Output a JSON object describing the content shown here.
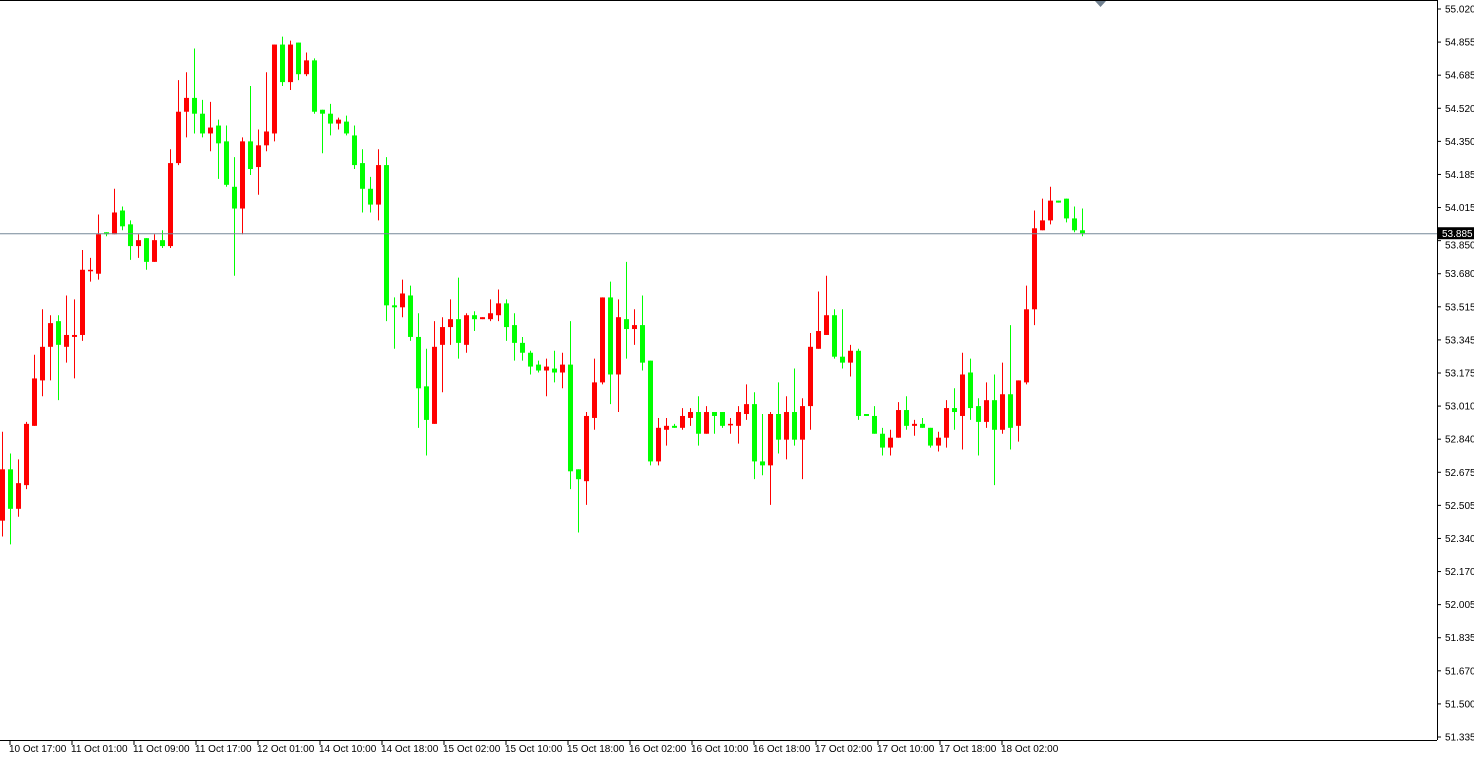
{
  "chart_data": {
    "type": "candlestick",
    "title": "",
    "xlabel": "",
    "ylabel": "",
    "ylim": [
      51.335,
      55.02
    ],
    "grid": false,
    "colors": {
      "up": "#ff0000",
      "down": "#00ff00",
      "price_line": "#778899",
      "axis": "#000000",
      "price_tag_bg": "#000000",
      "price_tag_text": "#ffffff"
    },
    "y_ticks": [
      "55.020",
      "54.855",
      "54.685",
      "54.520",
      "54.350",
      "54.185",
      "54.015",
      "53.850",
      "53.680",
      "53.515",
      "53.345",
      "53.175",
      "53.010",
      "52.840",
      "52.675",
      "52.505",
      "52.340",
      "52.170",
      "52.005",
      "51.835",
      "51.670",
      "51.500",
      "51.335"
    ],
    "x_ticks": [
      "10 Oct 17:00",
      "11 Oct 01:00",
      "11 Oct 09:00",
      "11 Oct 17:00",
      "12 Oct 01:00",
      "14 Oct 10:00",
      "14 Oct 18:00",
      "15 Oct 02:00",
      "15 Oct 10:00",
      "15 Oct 18:00",
      "16 Oct 02:00",
      "16 Oct 10:00",
      "16 Oct 18:00",
      "17 Oct 02:00",
      "17 Oct 10:00",
      "17 Oct 18:00",
      "18 Oct 02:00"
    ],
    "current_price": "53.885",
    "ohlc_fields": [
      "open",
      "high",
      "low",
      "close"
    ],
    "candles": [
      [
        52.43,
        52.88,
        52.35,
        52.69
      ],
      [
        52.69,
        52.77,
        52.31,
        52.49
      ],
      [
        52.49,
        52.74,
        52.45,
        52.62
      ],
      [
        52.61,
        52.93,
        52.59,
        52.92
      ],
      [
        52.91,
        53.27,
        52.91,
        53.15
      ],
      [
        53.14,
        53.5,
        53.06,
        53.31
      ],
      [
        53.31,
        53.47,
        53.14,
        53.43
      ],
      [
        53.44,
        53.47,
        53.04,
        53.32
      ],
      [
        53.31,
        53.57,
        53.23,
        53.37
      ],
      [
        53.36,
        53.55,
        53.15,
        53.37
      ],
      [
        53.37,
        53.8,
        53.34,
        53.7
      ],
      [
        53.7,
        53.76,
        53.64,
        53.7
      ],
      [
        53.68,
        53.98,
        53.65,
        53.88
      ],
      [
        53.89,
        53.89,
        53.87,
        53.88
      ],
      [
        53.88,
        54.11,
        53.88,
        53.99
      ],
      [
        54.0,
        54.02,
        53.9,
        53.92
      ],
      [
        53.93,
        53.95,
        53.75,
        53.82
      ],
      [
        53.82,
        53.88,
        53.76,
        53.85
      ],
      [
        53.86,
        53.86,
        53.7,
        53.74
      ],
      [
        53.74,
        53.88,
        53.74,
        53.85
      ],
      [
        53.85,
        53.9,
        53.81,
        53.82
      ],
      [
        53.82,
        54.31,
        53.81,
        54.24
      ],
      [
        54.24,
        54.66,
        54.23,
        54.5
      ],
      [
        54.5,
        54.7,
        54.37,
        54.57
      ],
      [
        54.57,
        54.82,
        54.39,
        54.49
      ],
      [
        54.49,
        54.56,
        54.37,
        54.39
      ],
      [
        54.39,
        54.55,
        54.3,
        54.42
      ],
      [
        54.43,
        54.46,
        54.16,
        54.34
      ],
      [
        54.35,
        54.43,
        54.12,
        54.13
      ],
      [
        54.12,
        54.27,
        53.67,
        54.01
      ],
      [
        54.01,
        54.37,
        53.88,
        54.35
      ],
      [
        54.35,
        54.63,
        54.18,
        54.21
      ],
      [
        54.22,
        54.41,
        54.08,
        54.33
      ],
      [
        54.33,
        54.7,
        54.3,
        54.4
      ],
      [
        54.39,
        54.84,
        54.35,
        54.84
      ],
      [
        54.84,
        54.88,
        54.63,
        54.65
      ],
      [
        54.65,
        54.86,
        54.61,
        54.84
      ],
      [
        54.85,
        54.85,
        54.66,
        54.69
      ],
      [
        54.69,
        54.8,
        54.68,
        54.76
      ],
      [
        54.76,
        54.77,
        54.49,
        54.5
      ],
      [
        54.51,
        54.51,
        54.29,
        54.49
      ],
      [
        54.49,
        54.54,
        54.38,
        54.44
      ],
      [
        54.44,
        54.47,
        54.41,
        54.46
      ],
      [
        54.45,
        54.48,
        54.38,
        54.39
      ],
      [
        54.38,
        54.43,
        54.21,
        54.23
      ],
      [
        54.24,
        54.31,
        53.99,
        54.11
      ],
      [
        54.11,
        54.17,
        53.99,
        54.03
      ],
      [
        54.03,
        54.31,
        53.95,
        54.23
      ],
      [
        54.23,
        54.27,
        53.44,
        53.52
      ],
      [
        53.52,
        53.56,
        53.3,
        53.51
      ],
      [
        53.51,
        53.65,
        53.46,
        53.58
      ],
      [
        53.57,
        53.62,
        53.34,
        53.36
      ],
      [
        53.36,
        53.48,
        52.9,
        53.1
      ],
      [
        53.11,
        53.3,
        52.76,
        52.94
      ],
      [
        52.92,
        53.44,
        52.92,
        53.31
      ],
      [
        53.32,
        53.46,
        53.08,
        53.41
      ],
      [
        53.41,
        53.55,
        53.32,
        53.45
      ],
      [
        53.45,
        53.66,
        53.25,
        53.33
      ],
      [
        53.32,
        53.48,
        53.28,
        53.47
      ],
      [
        53.47,
        53.49,
        53.39,
        53.45
      ],
      [
        53.45,
        53.46,
        53.45,
        53.46
      ],
      [
        53.45,
        53.55,
        53.44,
        53.48
      ],
      [
        53.47,
        53.6,
        53.44,
        53.53
      ],
      [
        53.53,
        53.55,
        53.34,
        53.41
      ],
      [
        53.42,
        53.48,
        53.24,
        53.33
      ],
      [
        53.33,
        53.36,
        53.24,
        53.28
      ],
      [
        53.28,
        53.29,
        53.17,
        53.21
      ],
      [
        53.22,
        53.24,
        53.18,
        53.19
      ],
      [
        53.19,
        53.25,
        53.06,
        53.21
      ],
      [
        53.2,
        53.29,
        53.13,
        53.18
      ],
      [
        53.18,
        53.28,
        53.1,
        53.22
      ],
      [
        53.22,
        53.44,
        52.59,
        52.68
      ],
      [
        52.69,
        52.69,
        52.37,
        52.64
      ],
      [
        52.63,
        52.98,
        52.51,
        52.96
      ],
      [
        52.95,
        53.25,
        52.89,
        53.13
      ],
      [
        53.13,
        53.56,
        53.12,
        53.56
      ],
      [
        53.56,
        53.64,
        53.02,
        53.17
      ],
      [
        53.17,
        53.55,
        52.98,
        53.46
      ],
      [
        53.45,
        53.74,
        53.25,
        53.4
      ],
      [
        53.4,
        53.5,
        53.32,
        53.42
      ],
      [
        53.42,
        53.57,
        53.19,
        53.23
      ],
      [
        53.24,
        53.24,
        52.71,
        52.73
      ],
      [
        52.73,
        52.95,
        52.71,
        52.9
      ],
      [
        52.89,
        52.95,
        52.81,
        52.91
      ],
      [
        52.91,
        52.92,
        52.9,
        52.9
      ],
      [
        52.9,
        53.0,
        52.89,
        52.96
      ],
      [
        52.95,
        53.0,
        52.91,
        52.98
      ],
      [
        52.98,
        53.06,
        52.81,
        52.87
      ],
      [
        52.87,
        53.01,
        52.87,
        52.98
      ],
      [
        52.98,
        52.98,
        52.87,
        52.96
      ],
      [
        52.98,
        52.98,
        52.9,
        52.91
      ],
      [
        52.92,
        52.95,
        52.87,
        52.92
      ],
      [
        52.91,
        53.01,
        52.82,
        52.98
      ],
      [
        52.97,
        53.12,
        52.94,
        53.02
      ],
      [
        53.02,
        53.08,
        52.64,
        52.73
      ],
      [
        52.73,
        52.97,
        52.66,
        52.71
      ],
      [
        52.71,
        52.98,
        52.51,
        52.97
      ],
      [
        52.97,
        53.13,
        52.77,
        52.84
      ],
      [
        52.84,
        53.06,
        52.74,
        52.98
      ],
      [
        52.98,
        53.2,
        52.81,
        52.84
      ],
      [
        52.84,
        53.05,
        52.64,
        53.01
      ],
      [
        53.01,
        53.38,
        52.89,
        53.31
      ],
      [
        53.3,
        53.59,
        53.3,
        53.39
      ],
      [
        53.37,
        53.67,
        53.37,
        53.47
      ],
      [
        53.47,
        53.5,
        53.25,
        53.26
      ],
      [
        53.26,
        53.5,
        53.2,
        53.23
      ],
      [
        53.23,
        53.32,
        53.16,
        53.29
      ],
      [
        53.29,
        53.3,
        52.94,
        52.96
      ],
      [
        52.97,
        52.97,
        52.96,
        52.96
      ],
      [
        52.96,
        53.01,
        52.87,
        52.87
      ],
      [
        52.87,
        52.9,
        52.76,
        52.8
      ],
      [
        52.8,
        52.89,
        52.76,
        52.85
      ],
      [
        52.85,
        53.03,
        52.85,
        52.99
      ],
      [
        52.99,
        53.06,
        52.89,
        52.91
      ],
      [
        52.91,
        52.94,
        52.86,
        52.92
      ],
      [
        52.92,
        52.95,
        52.9,
        52.9
      ],
      [
        52.9,
        52.9,
        52.8,
        52.81
      ],
      [
        52.81,
        52.88,
        52.78,
        52.85
      ],
      [
        52.85,
        53.04,
        52.8,
        53.0
      ],
      [
        53.0,
        53.1,
        52.89,
        52.98
      ],
      [
        52.96,
        53.28,
        52.79,
        53.17
      ],
      [
        53.18,
        53.25,
        52.94,
        53.0
      ],
      [
        53.01,
        53.05,
        52.76,
        52.93
      ],
      [
        52.93,
        53.13,
        52.9,
        53.04
      ],
      [
        53.04,
        53.17,
        52.61,
        52.89
      ],
      [
        52.89,
        53.23,
        52.87,
        53.07
      ],
      [
        53.07,
        53.42,
        52.79,
        52.9
      ],
      [
        52.91,
        53.14,
        52.83,
        53.14
      ],
      [
        53.13,
        53.62,
        53.12,
        53.5
      ],
      [
        53.5,
        54.0,
        53.42,
        53.91
      ],
      [
        53.9,
        54.06,
        53.9,
        53.95
      ],
      [
        53.95,
        54.12,
        53.93,
        54.05
      ],
      [
        54.05,
        54.05,
        54.04,
        54.04
      ],
      [
        54.06,
        54.06,
        53.94,
        53.96
      ],
      [
        53.96,
        54.02,
        53.89,
        53.9
      ],
      [
        53.9,
        54.01,
        53.87,
        53.885
      ]
    ]
  }
}
